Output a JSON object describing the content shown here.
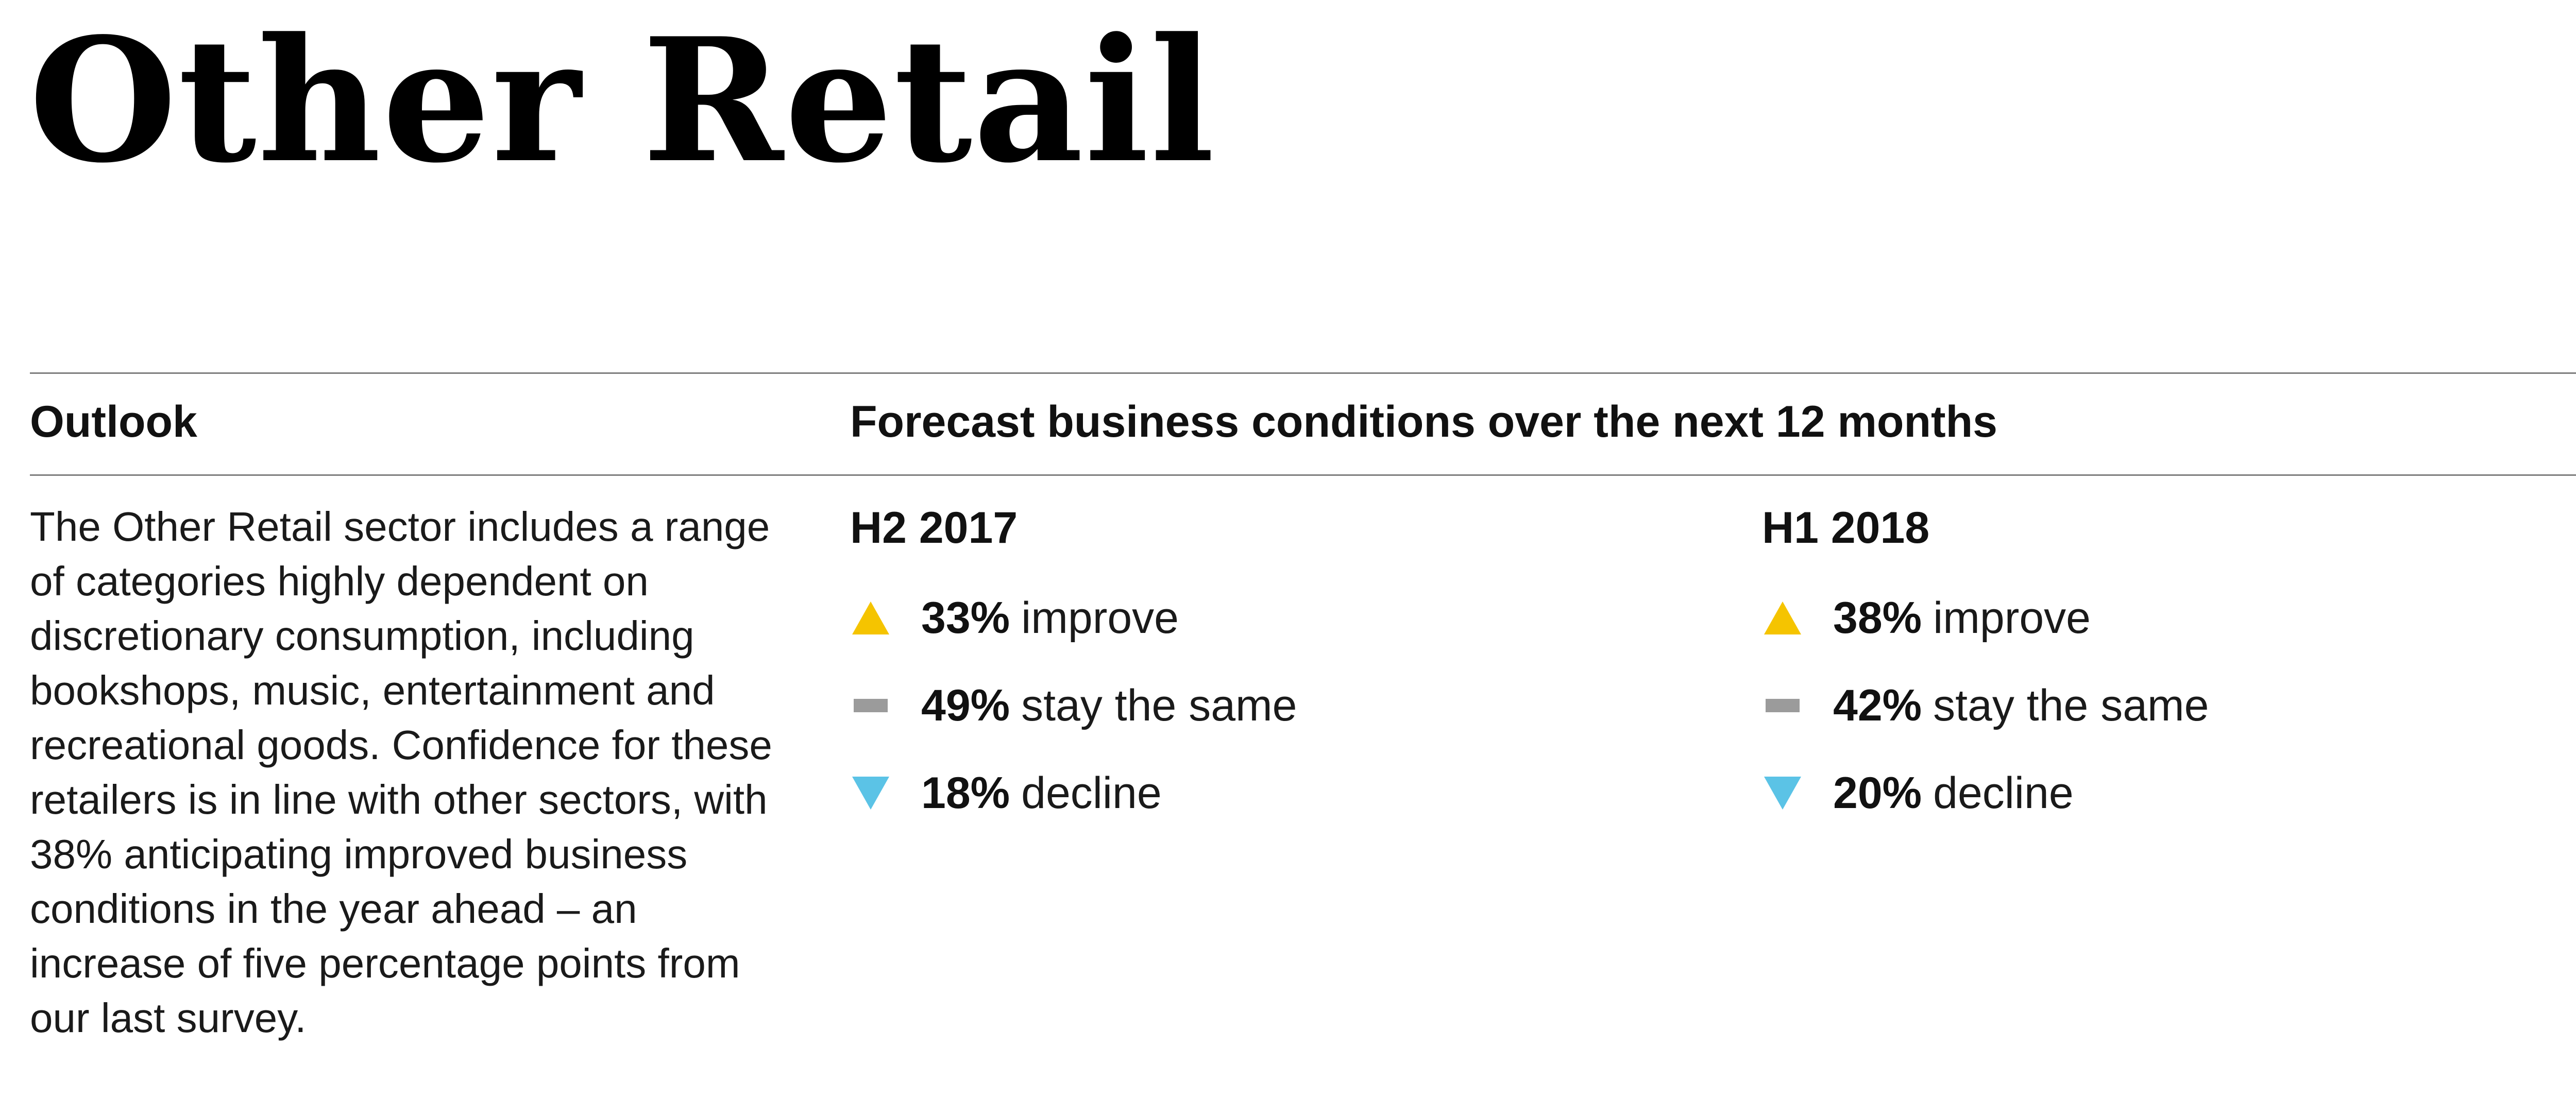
{
  "title": "Other Retail",
  "outlook": {
    "heading": "Outlook",
    "body": "The Other Retail sector includes a range of categories highly dependent on discretionary consumption, including bookshops, music, entertainment and recreational goods. Confidence for these retailers is in line with other sectors, with 38% anticipating improved business conditions in the year ahead – an increase of five percentage points from our last survey."
  },
  "forecast": {
    "heading": "Forecast business conditions over the next 12 months",
    "colors": {
      "improve": "#f5c400",
      "same": "#9b9b9b",
      "decline": "#5bc3e6"
    },
    "periods": [
      {
        "label": "H2 2017",
        "stats": [
          {
            "icon": "triangle-up-icon",
            "value": "33%",
            "label": "improve"
          },
          {
            "icon": "dash-icon",
            "value": "49%",
            "label": "stay the same"
          },
          {
            "icon": "triangle-down-icon",
            "value": "18%",
            "label": "decline"
          }
        ]
      },
      {
        "label": "H1 2018",
        "stats": [
          {
            "icon": "triangle-up-icon",
            "value": "38%",
            "label": "improve"
          },
          {
            "icon": "dash-icon",
            "value": "42%",
            "label": "stay the same"
          },
          {
            "icon": "triangle-down-icon",
            "value": "20%",
            "label": "decline"
          }
        ]
      }
    ]
  }
}
